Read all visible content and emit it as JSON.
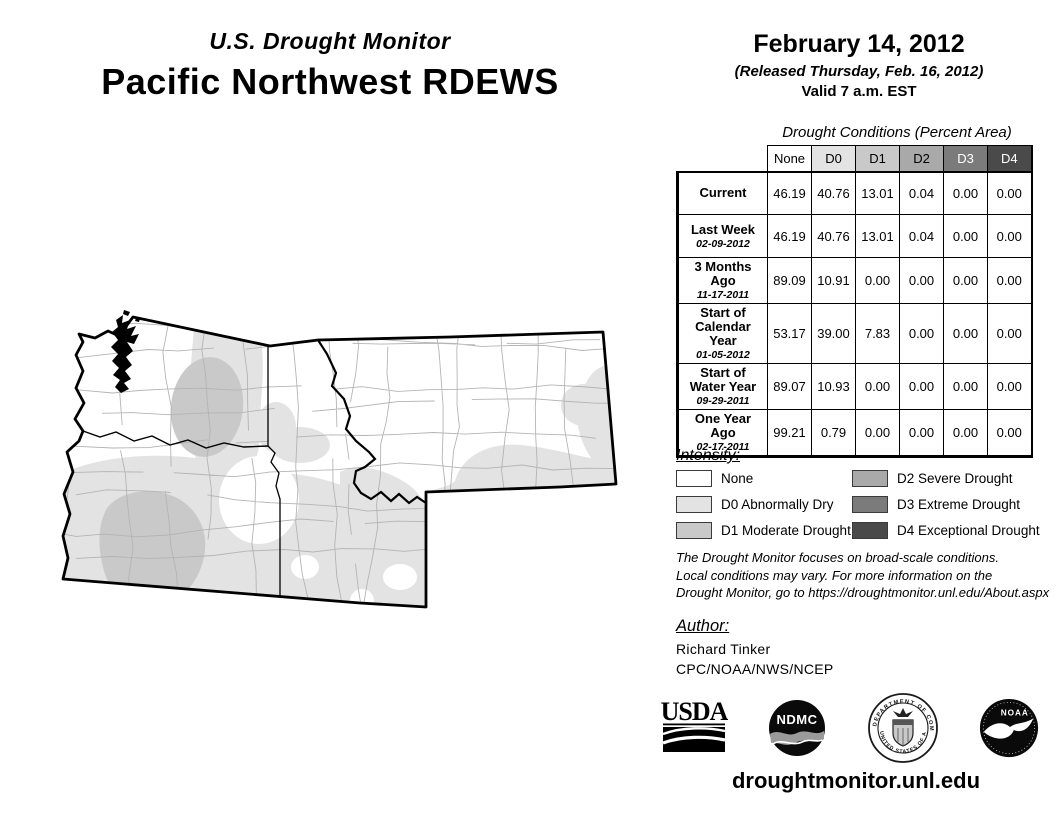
{
  "header": {
    "kicker": "U.S. Drought Monitor",
    "title": "Pacific Northwest RDEWS",
    "date": "February 14, 2012",
    "released": "(Released Thursday, Feb. 16, 2012)",
    "valid": "Valid 7 a.m. EST"
  },
  "drought_colors": {
    "none": "#ffffff",
    "d0": "#e3e3e3",
    "d1": "#c9c9c9",
    "d2": "#a9a9a9",
    "d3": "#7b7b7b",
    "d4": "#4a4a4a"
  },
  "table": {
    "caption": "Drought Conditions (Percent Area)",
    "columns": [
      "None",
      "D0",
      "D1",
      "D2",
      "D3",
      "D4"
    ],
    "rows": [
      {
        "label": "Current",
        "date": "",
        "values": [
          "46.19",
          "40.76",
          "13.01",
          "0.04",
          "0.00",
          "0.00"
        ]
      },
      {
        "label": "Last Week",
        "date": "02-09-2012",
        "values": [
          "46.19",
          "40.76",
          "13.01",
          "0.04",
          "0.00",
          "0.00"
        ]
      },
      {
        "label": "3 Months Ago",
        "date": "11-17-2011",
        "values": [
          "89.09",
          "10.91",
          "0.00",
          "0.00",
          "0.00",
          "0.00"
        ]
      },
      {
        "label": "Start of Calendar Year",
        "date": "01-05-2012",
        "values": [
          "53.17",
          "39.00",
          "7.83",
          "0.00",
          "0.00",
          "0.00"
        ]
      },
      {
        "label": "Start of Water Year",
        "date": "09-29-2011",
        "values": [
          "89.07",
          "10.93",
          "0.00",
          "0.00",
          "0.00",
          "0.00"
        ]
      },
      {
        "label": "One Year Ago",
        "date": "02-17-2011",
        "values": [
          "99.21",
          "0.79",
          "0.00",
          "0.00",
          "0.00",
          "0.00"
        ]
      }
    ]
  },
  "legend": {
    "title": "Intensity:",
    "items": [
      {
        "code": "none",
        "label": "None"
      },
      {
        "code": "d0",
        "label": "D0 Abnormally Dry"
      },
      {
        "code": "d1",
        "label": "D1 Moderate Drought"
      },
      {
        "code": "d2",
        "label": "D2 Severe Drought"
      },
      {
        "code": "d3",
        "label": "D3 Extreme Drought"
      },
      {
        "code": "d4",
        "label": "D4 Exceptional Drought"
      }
    ]
  },
  "disclaimer": {
    "lines": [
      "The Drought Monitor focuses on broad-scale conditions.",
      "Local conditions may vary. For more information on the",
      "Drought Monitor, go to https://droughtmonitor.unl.edu/About.aspx"
    ]
  },
  "author": {
    "title": "Author:",
    "name": "Richard Tinker",
    "org": "CPC/NOAA/NWS/NCEP"
  },
  "logos": {
    "usda": "USDA",
    "ndmc": "NDMC",
    "noaa": "NOAA",
    "doc_top": "DEPARTMENT OF COMMERCE",
    "doc_bottom": "UNITED STATES OF AMERICA"
  },
  "footer": {
    "url": "droughtmonitor.unl.edu"
  }
}
